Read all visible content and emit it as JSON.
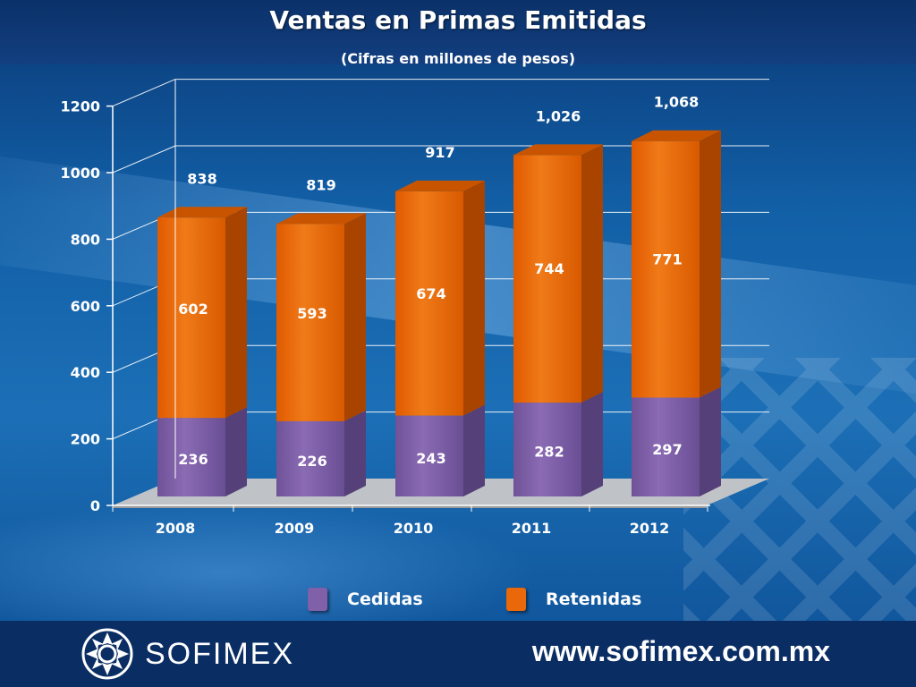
{
  "title": "Ventas en Primas Emitidas",
  "subtitle": "(Cifras en millones de pesos)",
  "colors": {
    "cedidas": "#8060a8",
    "retenidas": "#e8680a",
    "floor": "#c8c8c8"
  },
  "legend": {
    "cedidas": "Cedidas",
    "retenidas": "Retenidas"
  },
  "footer": {
    "logo_text": "SOFIMEX",
    "logo_icon": "sofimex-logo-icon",
    "website": "www.sofimex.com.mx"
  },
  "chart_data": {
    "type": "bar",
    "stacked": true,
    "categories": [
      "2008",
      "2009",
      "2010",
      "2011",
      "2012"
    ],
    "series": [
      {
        "name": "Cedidas",
        "values": [
          236,
          226,
          243,
          282,
          297
        ],
        "labels": [
          "236",
          "226",
          "243",
          "282",
          "297"
        ]
      },
      {
        "name": "Retenidas",
        "values": [
          602,
          593,
          674,
          744,
          771
        ],
        "labels": [
          "602",
          "593",
          "674",
          "744",
          "771"
        ]
      }
    ],
    "totals": [
      838,
      819,
      917,
      1026,
      1068
    ],
    "total_labels": [
      "838",
      "819",
      "917",
      "1,026",
      "1,068"
    ],
    "y_ticks": [
      "0",
      "200",
      "400",
      "600",
      "800",
      "1000",
      "1200"
    ],
    "ylim": [
      0,
      1200
    ],
    "grid": true,
    "legend_position": "bottom"
  }
}
